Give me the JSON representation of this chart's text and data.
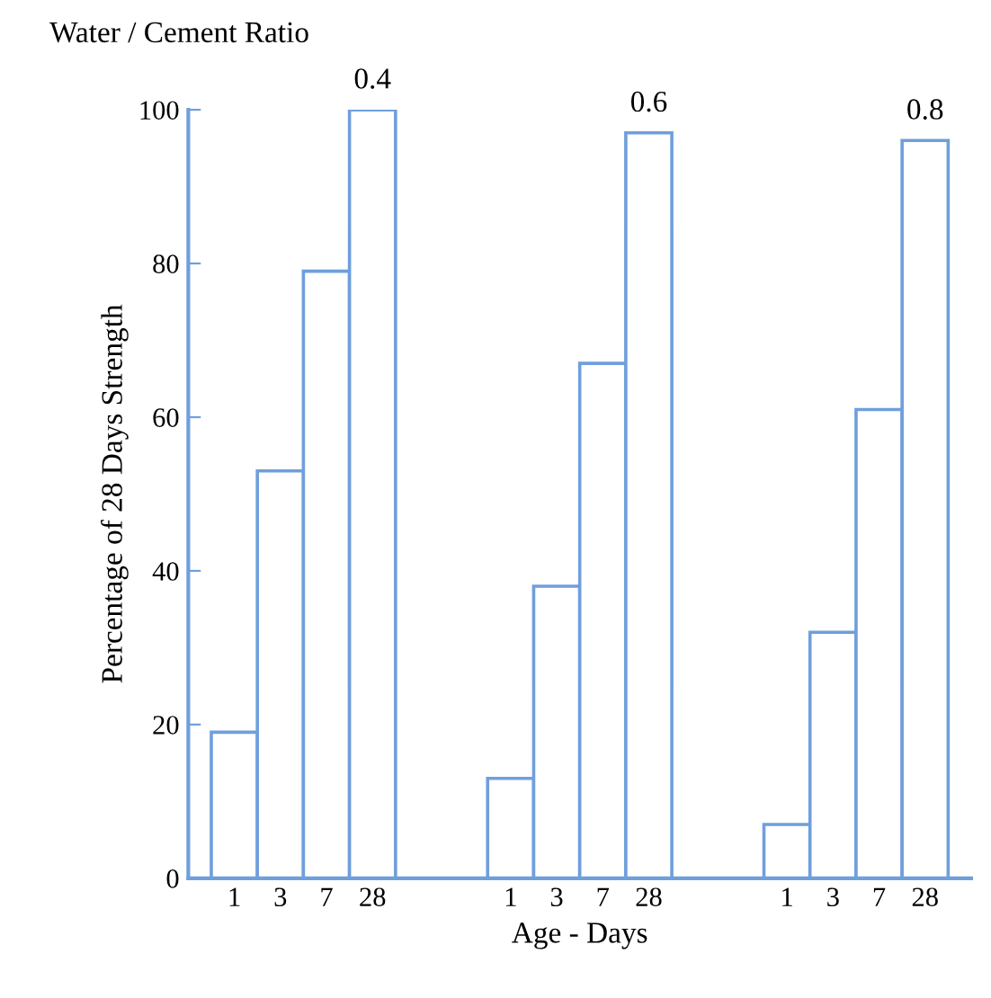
{
  "chart_data": {
    "type": "bar",
    "title": "Water / Cement Ratio",
    "xlabel": "Age - Days",
    "ylabel": "Percentage of 28 Days Strength",
    "categories": [
      "1",
      "3",
      "7",
      "28",
      null,
      null,
      "1",
      "3",
      "7",
      "28",
      null,
      null,
      "1",
      "3",
      "7",
      "28"
    ],
    "values": [
      19,
      53,
      79,
      100,
      null,
      null,
      13,
      38,
      67,
      97,
      null,
      null,
      7,
      32,
      61,
      96
    ],
    "color": "#6f9fdc",
    "annotations": [
      "0.4",
      "0.6",
      "0.8"
    ],
    "ylim": [
      0,
      100
    ],
    "yticks": [
      0,
      20,
      40,
      60,
      80,
      100
    ],
    "grid": false,
    "legend": false
  }
}
